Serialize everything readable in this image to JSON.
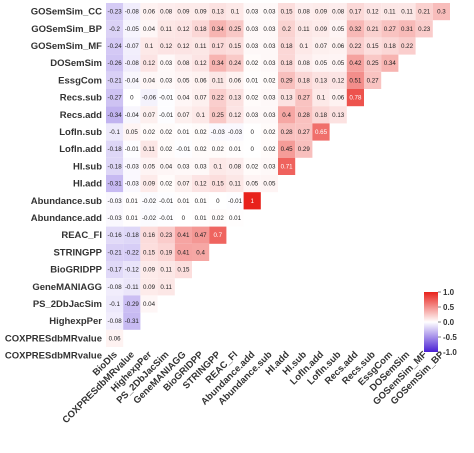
{
  "chart_data": {
    "type": "heatmap",
    "title": "",
    "xlabel": "",
    "ylabel": "",
    "variables": [
      "BioDIs",
      "COXPRESdbMRvalue",
      "HighexpPer",
      "PS_2DbJacSim",
      "GeneMANIAGG",
      "BioGRIDPP",
      "STRINGPP",
      "REAC_FI",
      "Abundance.add",
      "Abundance.sub",
      "HI.add",
      "HI.sub",
      "LofIn.add",
      "LofIn.sub",
      "Recs.add",
      "Recs.sub",
      "EssgCom",
      "DOSemSim",
      "GOSemSim_MF",
      "GOSemSim_BP",
      "GOSemSim_CC"
    ],
    "row_labels": [
      "GOSemSim_CC",
      "GOSemSim_BP",
      "GOSemSim_MF",
      "DOSemSim",
      "EssgCom",
      "Recs.sub",
      "Recs.add",
      "LofIn.sub",
      "LofIn.add",
      "HI.sub",
      "HI.add",
      "Abundance.sub",
      "Abundance.add",
      "REAC_FI",
      "STRINGPP",
      "BioGRIDPP",
      "GeneMANIAGG",
      "PS_2DbJacSim",
      "HighexpPer",
      "COXPRESdbMRvalue"
    ],
    "col_labels": [
      "BioDIs",
      "COXPRESdbMRvalue",
      "HighexpPer",
      "PS_2DbJacSim",
      "GeneMANIAGG",
      "BioGRIDPP",
      "STRINGPP",
      "REAC_FI",
      "Abundance.add",
      "Abundance.sub",
      "HI.add",
      "HI.sub",
      "LofIn.add",
      "LofIn.sub",
      "Recs.add",
      "Recs.sub",
      "EssgCom",
      "DOSemSim",
      "GOSemSim_MF",
      "GOSemSim_BP"
    ],
    "values": [
      [
        -0.23,
        -0.08,
        0.06,
        0.08,
        0.09,
        0.09,
        0.13,
        0.1,
        0.03,
        0.03,
        0.15,
        0.08,
        0.09,
        0.08,
        0.17,
        0.12,
        0.11,
        0.11,
        0.21,
        0.3
      ],
      [
        -0.2,
        -0.05,
        0.04,
        0.11,
        0.12,
        0.18,
        0.34,
        0.25,
        0.03,
        0.03,
        0.2,
        0.11,
        0.09,
        0.05,
        0.32,
        0.21,
        0.27,
        0.31,
        0.23
      ],
      [
        -0.24,
        -0.07,
        0.1,
        0.12,
        0.12,
        0.11,
        0.17,
        0.15,
        0.03,
        0.03,
        0.18,
        0.1,
        0.07,
        0.06,
        0.22,
        0.15,
        0.18,
        0.22
      ],
      [
        -0.26,
        -0.08,
        0.12,
        0.03,
        0.08,
        0.12,
        0.34,
        0.24,
        0.02,
        0.03,
        0.18,
        0.08,
        0.05,
        0.05,
        0.42,
        0.25,
        0.34
      ],
      [
        -0.21,
        -0.04,
        0.04,
        0.03,
        0.05,
        0.06,
        0.11,
        0.06,
        0.01,
        0.02,
        0.29,
        0.18,
        0.13,
        0.12,
        0.51,
        0.27
      ],
      [
        -0.27,
        0,
        -0.06,
        -0.01,
        0.04,
        0.07,
        0.22,
        0.13,
        0.02,
        0.03,
        0.13,
        0.27,
        0.1,
        0.06,
        0.78
      ],
      [
        -0.34,
        -0.04,
        0.07,
        -0.01,
        0.07,
        0.1,
        0.25,
        0.12,
        0.03,
        0.03,
        0.4,
        0.28,
        0.18,
        0.13
      ],
      [
        -0.1,
        0.05,
        0.02,
        0.02,
        0.01,
        0.02,
        -0.03,
        -0.03,
        0,
        0.02,
        0.28,
        0.27,
        0.65
      ],
      [
        -0.18,
        -0.01,
        0.11,
        0.02,
        -0.01,
        0.02,
        0.02,
        0.01,
        0,
        0.02,
        0.45,
        0.29
      ],
      [
        -0.18,
        -0.03,
        0.05,
        0.04,
        0.03,
        0.03,
        0.1,
        0.08,
        0.02,
        0.03,
        0.71
      ],
      [
        -0.31,
        -0.03,
        0.09,
        0.02,
        0.07,
        0.12,
        0.15,
        0.11,
        0.05,
        0.05
      ],
      [
        -0.03,
        0.01,
        -0.02,
        -0.01,
        0.01,
        0.01,
        0,
        -0.01,
        1
      ],
      [
        -0.03,
        0.01,
        -0.02,
        -0.01,
        0,
        0.01,
        0.02,
        0.01
      ],
      [
        -0.16,
        -0.18,
        0.16,
        0.23,
        0.41,
        0.47,
        0.7
      ],
      [
        -0.21,
        -0.22,
        0.15,
        0.19,
        0.41,
        0.4
      ],
      [
        -0.17,
        -0.12,
        0.09,
        0.11,
        0.15
      ],
      [
        -0.08,
        -0.11,
        0.09,
        0.11
      ],
      [
        -0.1,
        -0.29,
        0.04
      ],
      [
        -0.08,
        -0.31
      ],
      [
        0.06
      ]
    ],
    "diagonal_label": "COXPRESdbMRvalue",
    "color_scale": {
      "low": "#4a1fd4",
      "mid": "#ffffff",
      "high": "#e8221b",
      "range": [
        -1,
        1
      ],
      "ticks": [
        1.0,
        0.5,
        0,
        -0.5,
        -1.0
      ],
      "tick_labels": [
        "1.0",
        "0.5",
        "0.0",
        "-0.5",
        "-1.0"
      ]
    },
    "legend_position": "bottom-right",
    "grid": false
  }
}
